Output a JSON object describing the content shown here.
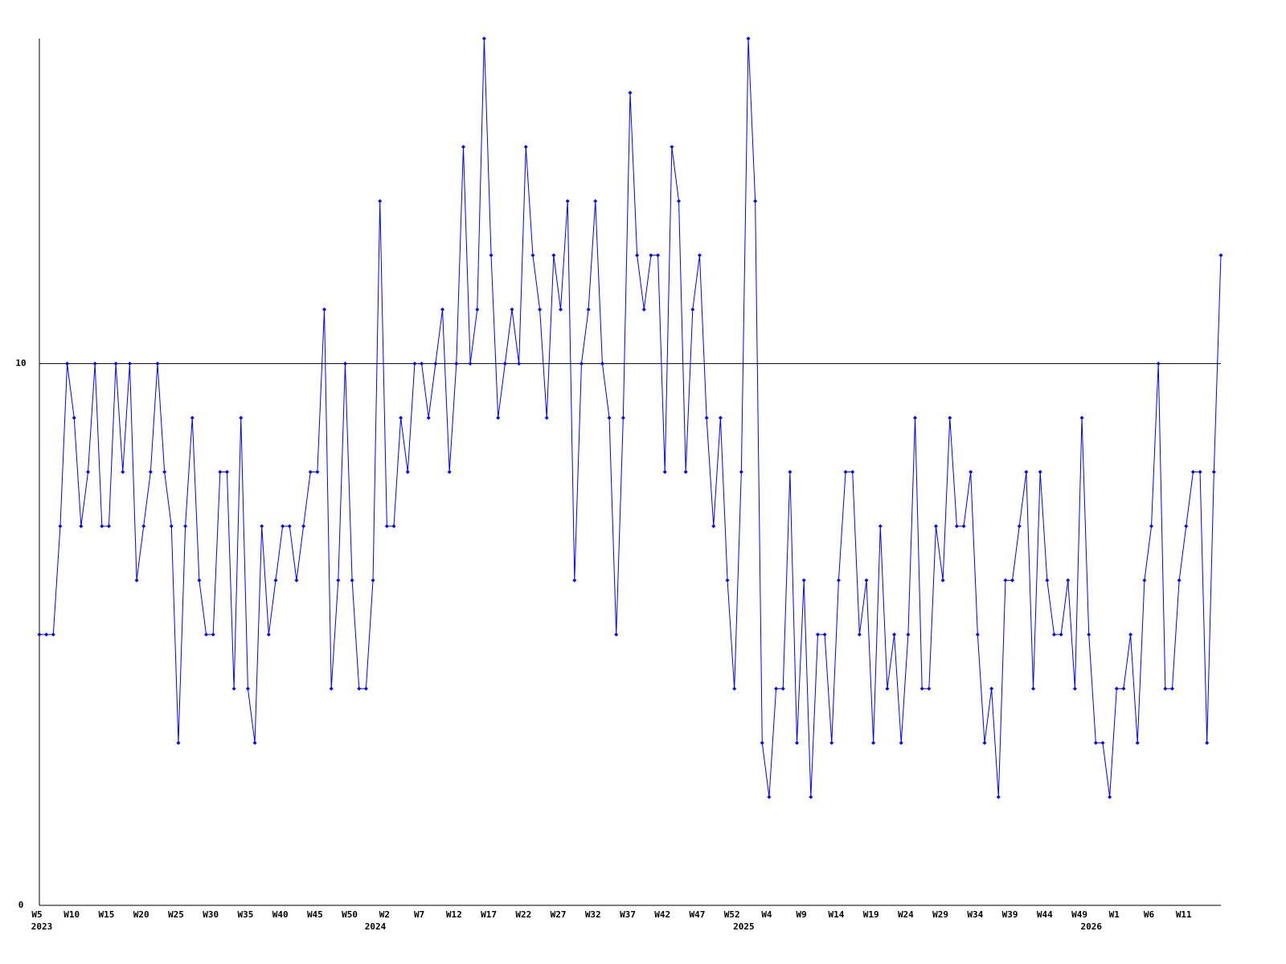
{
  "chart_data": {
    "type": "line",
    "categories": [
      "W5",
      null,
      null,
      null,
      null,
      "W10",
      null,
      null,
      null,
      null,
      "W15",
      null,
      null,
      null,
      null,
      "W20",
      null,
      null,
      null,
      null,
      "W25",
      null,
      null,
      null,
      null,
      "W30",
      null,
      null,
      null,
      null,
      "W35",
      null,
      null,
      null,
      null,
      "W40",
      null,
      null,
      null,
      null,
      "W45",
      null,
      null,
      null,
      null,
      "W50",
      null,
      null,
      null,
      null,
      "W2",
      null,
      null,
      null,
      null,
      "W7",
      null,
      null,
      null,
      null,
      "W12",
      null,
      null,
      null,
      null,
      "W17",
      null,
      null,
      null,
      null,
      "W22",
      null,
      null,
      null,
      null,
      "W27",
      null,
      null,
      null,
      null,
      "W32",
      null,
      null,
      null,
      null,
      "W37",
      null,
      null,
      null,
      null,
      "W42",
      null,
      null,
      null,
      null,
      "W47",
      null,
      null,
      null,
      null,
      "W52",
      null,
      null,
      null,
      null,
      "W4",
      null,
      null,
      null,
      null,
      "W9",
      null,
      null,
      null,
      null,
      "W14",
      null,
      null,
      null,
      null,
      "W19",
      null,
      null,
      null,
      null,
      "W24",
      null,
      null,
      null,
      null,
      "W29",
      null,
      null,
      null,
      null,
      "W34",
      null,
      null,
      null,
      null,
      "W39",
      null,
      null,
      null,
      null,
      "W44",
      null,
      null,
      null,
      null,
      "W49",
      null,
      null,
      null,
      null,
      "W1",
      null,
      null,
      null,
      null,
      "W6",
      null,
      null,
      null,
      null,
      "W11",
      null,
      null,
      null,
      null,
      null
    ],
    "category_years": [
      "2023",
      null,
      null,
      null,
      null,
      null,
      null,
      null,
      null,
      null,
      null,
      null,
      null,
      null,
      null,
      null,
      null,
      null,
      null,
      null,
      null,
      null,
      null,
      null,
      null,
      null,
      null,
      null,
      null,
      null,
      null,
      null,
      null,
      null,
      null,
      null,
      null,
      null,
      null,
      null,
      null,
      null,
      null,
      null,
      null,
      null,
      null,
      null,
      "2024",
      null,
      null,
      null,
      null,
      null,
      null,
      null,
      null,
      null,
      null,
      null,
      null,
      null,
      null,
      null,
      null,
      null,
      null,
      null,
      null,
      null,
      null,
      null,
      null,
      null,
      null,
      null,
      null,
      null,
      null,
      null,
      null,
      null,
      null,
      null,
      null,
      null,
      null,
      null,
      null,
      null,
      null,
      null,
      null,
      null,
      null,
      null,
      null,
      null,
      null,
      null,
      null,
      "2025",
      null,
      null,
      null,
      null,
      null,
      null,
      null,
      null,
      null,
      null,
      null,
      null,
      null,
      null,
      null,
      null,
      null,
      null,
      null,
      null,
      null,
      null,
      null,
      null,
      null,
      null,
      null,
      null,
      null,
      null,
      null,
      null,
      null,
      null,
      null,
      null,
      null,
      null,
      null,
      null,
      null,
      null,
      null,
      null,
      null,
      null,
      null,
      null,
      null,
      "2026",
      null,
      null,
      null,
      null,
      null,
      null,
      null,
      null,
      null,
      null,
      null,
      null,
      null,
      null,
      null,
      null
    ],
    "series": [
      {
        "color": "#0000ff",
        "values": [
          5,
          5,
          5,
          7,
          10,
          9,
          7,
          8,
          10,
          7,
          7,
          10,
          8,
          10,
          6,
          7,
          8,
          10,
          8,
          7,
          3,
          7,
          9,
          6,
          5,
          5,
          8,
          8,
          4,
          9,
          4,
          3,
          7,
          5,
          6,
          7,
          7,
          6,
          7,
          8,
          8,
          11,
          4,
          6,
          10,
          6,
          4,
          4,
          6,
          13,
          7,
          7,
          9,
          8,
          10,
          10,
          9,
          10,
          11,
          8,
          10,
          14,
          10,
          11,
          16,
          12,
          9,
          10,
          11,
          10,
          14,
          12,
          11,
          9,
          12,
          11,
          13,
          6,
          10,
          11,
          13,
          10,
          9,
          5,
          9,
          15,
          12,
          11,
          12,
          12,
          8,
          14,
          13,
          8,
          11,
          12,
          9,
          7,
          9,
          6,
          4,
          8,
          16,
          13,
          3,
          2,
          4,
          4,
          8,
          3,
          6,
          2,
          5,
          5,
          3,
          6,
          8,
          8,
          5,
          6,
          3,
          7,
          4,
          5,
          3,
          5,
          9,
          4,
          4,
          7,
          6,
          9,
          7,
          7,
          8,
          5,
          3,
          4,
          2,
          6,
          6,
          7,
          8,
          4,
          8,
          6,
          5,
          5,
          6,
          4,
          9,
          5,
          3,
          3,
          2,
          4,
          4,
          5,
          3,
          6,
          7,
          10,
          4,
          4,
          6,
          7,
          8,
          8,
          3,
          8,
          12
        ]
      }
    ],
    "ylim": [
      0,
      16
    ],
    "yticks": [
      0,
      10
    ],
    "grid": true,
    "markers": true
  }
}
